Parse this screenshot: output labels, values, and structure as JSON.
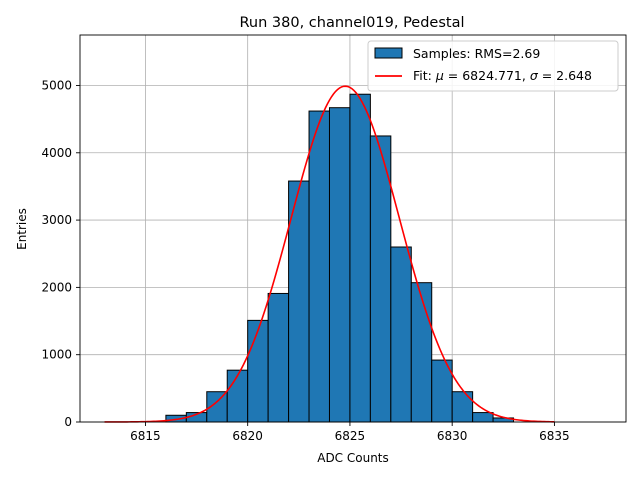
{
  "chart_data": {
    "type": "bar",
    "title": "Run 380, channel019, Pedestal",
    "xlabel": "ADC Counts",
    "ylabel": "Entries",
    "xlim": [
      6811.8,
      6838.5
    ],
    "ylim": [
      0,
      5750
    ],
    "xticks": [
      6815,
      6820,
      6825,
      6830,
      6835
    ],
    "yticks": [
      0,
      1000,
      2000,
      3000,
      4000,
      5000
    ],
    "grid": true,
    "legend_position": "top-right",
    "histogram": {
      "name": "Samples: RMS=2.69",
      "color": "#1f77b4",
      "edge_color": "#000000",
      "bin_edges": [
        6816,
        6817,
        6818,
        6819,
        6820,
        6821,
        6822,
        6823,
        6824,
        6825,
        6826,
        6827,
        6828,
        6829,
        6830,
        6831,
        6832,
        6833
      ],
      "counts": [
        100,
        140,
        450,
        770,
        1510,
        1910,
        3580,
        4620,
        4670,
        4870,
        4250,
        2600,
        2070,
        920,
        450,
        140,
        60
      ]
    },
    "fit": {
      "name": "Fit: μ = 6824.771, σ = 2.648",
      "legend_parts": [
        "Fit: ",
        "μ",
        " = 6824.771, ",
        "σ",
        " = 2.648"
      ],
      "color": "#ff0000",
      "mu": 6824.771,
      "sigma": 2.648,
      "amplitude": 4990,
      "x_range": [
        6813,
        6835
      ]
    }
  }
}
